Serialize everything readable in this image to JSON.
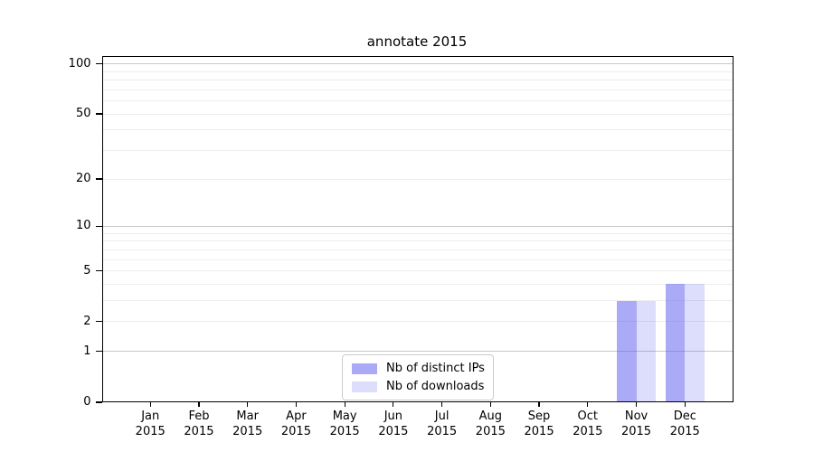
{
  "figure": {
    "background": "#ffffff"
  },
  "chart_data": {
    "type": "bar",
    "title": "annotate 2015",
    "categories": [
      "Jan",
      "Feb",
      "Mar",
      "Apr",
      "May",
      "Jun",
      "Jul",
      "Aug",
      "Sep",
      "Oct",
      "Nov",
      "Dec"
    ],
    "x_tick_second_line": "2015",
    "series": [
      {
        "name": "Nb of distinct IPs",
        "color": "#5555ee",
        "fill": "#5555ee80",
        "values": [
          0,
          0,
          0,
          0,
          0,
          0,
          0,
          0,
          0,
          0,
          3,
          4
        ]
      },
      {
        "name": "Nb of downloads",
        "color": "#5555ee",
        "fill": "#5555ee33",
        "values": [
          0,
          0,
          0,
          0,
          0,
          0,
          0,
          0,
          0,
          0,
          3,
          4
        ]
      }
    ],
    "xlabel": "",
    "ylabel": "",
    "y_axis": {
      "scale": "log1p",
      "ylim": [
        0,
        112
      ],
      "tick_labels": [
        0,
        1,
        2,
        5,
        10,
        20,
        50,
        100
      ],
      "minor_gridlines": [
        2,
        3,
        4,
        5,
        6,
        7,
        8,
        9,
        20,
        30,
        40,
        50,
        60,
        70,
        80,
        90
      ],
      "major_gridlines": [
        1,
        10,
        100
      ]
    },
    "grid": "horizontal",
    "grid_colors": {
      "minor": "#ededed",
      "major": "#c9c9c9"
    },
    "legend": {
      "position": "lower center",
      "labels": [
        "Nb of distinct IPs",
        "Nb of downloads"
      ]
    }
  }
}
